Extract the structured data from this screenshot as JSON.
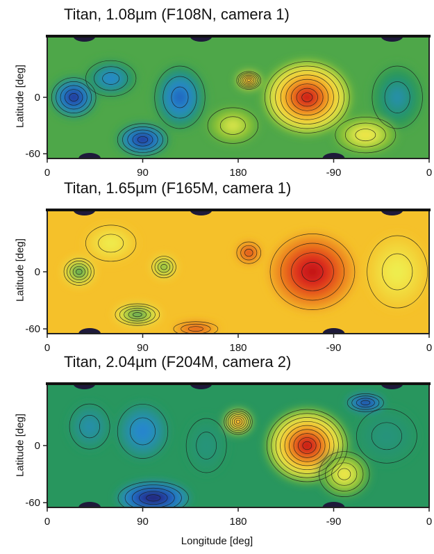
{
  "chart_data": [
    {
      "type": "heatmap",
      "title": "Titan, 1.08µm (F108N, camera 1)",
      "ylabel": "Latitude [deg]",
      "xlabel": "",
      "xlim": [
        0,
        360
      ],
      "ylim": [
        -65,
        65
      ],
      "x_ticks": [
        "0",
        "90",
        "180",
        "-90",
        "0"
      ],
      "y_ticks": [
        "0",
        "-60"
      ],
      "features": [
        {
          "x": 245,
          "y": 0,
          "level": 0.95,
          "w": 42,
          "h": 40
        },
        {
          "x": 190,
          "y": 18,
          "level": 0.85,
          "w": 12,
          "h": 10
        },
        {
          "x": 25,
          "y": 0,
          "level": 0.05,
          "w": 22,
          "h": 22
        },
        {
          "x": 90,
          "y": -45,
          "level": 0.05,
          "w": 25,
          "h": 18
        },
        {
          "x": 125,
          "y": 0,
          "level": 0.15,
          "w": 25,
          "h": 35
        },
        {
          "x": 60,
          "y": 20,
          "level": 0.2,
          "w": 25,
          "h": 20
        },
        {
          "x": 330,
          "y": 0,
          "level": 0.25,
          "w": 25,
          "h": 35
        },
        {
          "x": 300,
          "y": -40,
          "level": 0.6,
          "w": 30,
          "h": 20
        },
        {
          "x": 175,
          "y": -30,
          "level": 0.55,
          "w": 25,
          "h": 20
        }
      ],
      "base_level": 0.38
    },
    {
      "type": "heatmap",
      "title": "Titan, 1.65µm (F165M, camera 1)",
      "ylabel": "Latitude [deg]",
      "xlabel": "",
      "xlim": [
        0,
        360
      ],
      "ylim": [
        -65,
        65
      ],
      "x_ticks": [
        "0",
        "90",
        "180",
        "-90",
        "0"
      ],
      "y_ticks": [
        "0",
        "-60"
      ],
      "features": [
        {
          "x": 250,
          "y": 0,
          "level": 0.97,
          "w": 42,
          "h": 42
        },
        {
          "x": 190,
          "y": 20,
          "level": 0.9,
          "w": 12,
          "h": 12
        },
        {
          "x": 30,
          "y": 0,
          "level": 0.3,
          "w": 15,
          "h": 15
        },
        {
          "x": 110,
          "y": 5,
          "level": 0.35,
          "w": 12,
          "h": 12
        },
        {
          "x": 85,
          "y": -45,
          "level": 0.3,
          "w": 22,
          "h": 12
        },
        {
          "x": 140,
          "y": -60,
          "level": 0.88,
          "w": 22,
          "h": 8
        },
        {
          "x": 330,
          "y": 0,
          "level": 0.55,
          "w": 30,
          "h": 40
        },
        {
          "x": 60,
          "y": 30,
          "level": 0.55,
          "w": 25,
          "h": 20
        }
      ],
      "base_level": 0.66
    },
    {
      "type": "heatmap",
      "title": "Titan, 2.04µm (F204M, camera 2)",
      "ylabel": "Latitude [deg]",
      "xlabel": "Longitude [deg]",
      "xlim": [
        0,
        360
      ],
      "ylim": [
        -65,
        65
      ],
      "x_ticks": [
        "0",
        "90",
        "180",
        "-90",
        "0"
      ],
      "y_ticks": [
        "0",
        "-60"
      ],
      "features": [
        {
          "x": 245,
          "y": 0,
          "level": 0.97,
          "w": 40,
          "h": 40
        },
        {
          "x": 180,
          "y": 25,
          "level": 0.82,
          "w": 14,
          "h": 14
        },
        {
          "x": 100,
          "y": -55,
          "level": 0.0,
          "w": 35,
          "h": 18
        },
        {
          "x": 90,
          "y": 15,
          "level": 0.2,
          "w": 25,
          "h": 30
        },
        {
          "x": 40,
          "y": 20,
          "level": 0.25,
          "w": 20,
          "h": 25
        },
        {
          "x": 150,
          "y": 0,
          "level": 0.3,
          "w": 20,
          "h": 30
        },
        {
          "x": 320,
          "y": 10,
          "level": 0.3,
          "w": 30,
          "h": 30
        },
        {
          "x": 300,
          "y": 45,
          "level": 0.05,
          "w": 18,
          "h": 10
        },
        {
          "x": 280,
          "y": -30,
          "level": 0.6,
          "w": 25,
          "h": 25
        }
      ],
      "base_level": 0.33
    }
  ]
}
